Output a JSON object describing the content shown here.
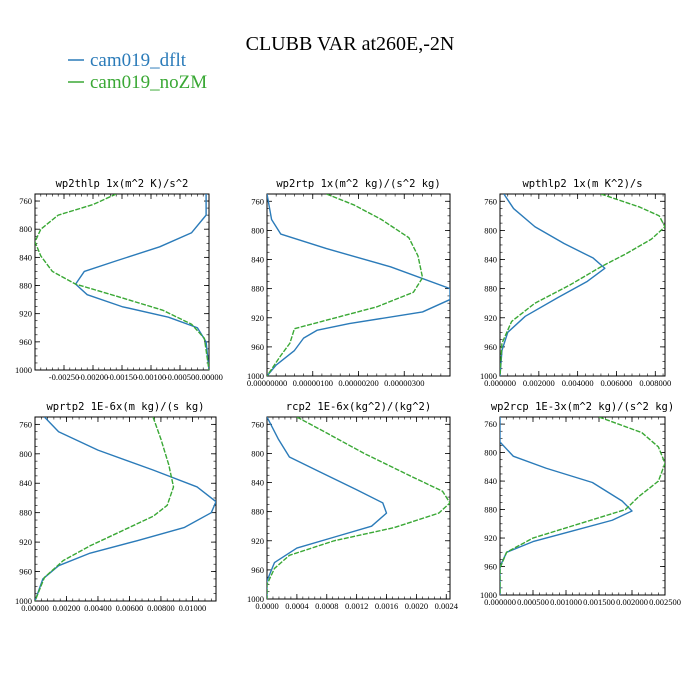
{
  "title": "CLUBB VAR at260E,-2N",
  "colors": {
    "dflt": "#2b7bb9",
    "noZM": "#3aa835"
  },
  "legend": [
    {
      "label": "cam019_dflt",
      "color": "#2b7bb9"
    },
    {
      "label": "cam019_noZM",
      "color": "#3aa835"
    }
  ],
  "chart_data": [
    {
      "type": "line",
      "title": "wp2thlp  1x(m^2 K)/s^2",
      "xlim": [
        -0.003,
        0.0
      ],
      "xticks": [
        -0.0025,
        -0.002,
        -0.0015,
        -0.001,
        -0.0005,
        0.0
      ],
      "xtick_labels": [
        "-0.00250",
        "-0.00200",
        "-0.00150",
        "-0.00100",
        "-0.00050",
        "0.00000"
      ],
      "ylim": [
        1000,
        750
      ],
      "yticks": [
        760,
        800,
        840,
        880,
        920,
        960,
        1000
      ],
      "series": [
        {
          "name": "cam019_dflt",
          "points": [
            [
              -5e-05,
              750
            ],
            [
              -5e-05,
              780
            ],
            [
              -0.0003,
              805
            ],
            [
              -0.00085,
              825
            ],
            [
              -0.0016,
              845
            ],
            [
              -0.00215,
              860
            ],
            [
              -0.0023,
              878
            ],
            [
              -0.0021,
              893
            ],
            [
              -0.0015,
              910
            ],
            [
              -0.0007,
              925
            ],
            [
              -0.0002,
              940
            ],
            [
              -5e-05,
              960
            ],
            [
              0.0,
              1000
            ]
          ]
        },
        {
          "name": "cam019_noZM",
          "points": [
            [
              -0.0016,
              750
            ],
            [
              -0.002,
              765
            ],
            [
              -0.0026,
              780
            ],
            [
              -0.0029,
              800
            ],
            [
              -0.003,
              818
            ],
            [
              -0.0029,
              838
            ],
            [
              -0.0027,
              860
            ],
            [
              -0.0023,
              878
            ],
            [
              -0.0016,
              895
            ],
            [
              -0.0008,
              915
            ],
            [
              -0.0003,
              935
            ],
            [
              -8e-05,
              955
            ],
            [
              0.0,
              1000
            ]
          ]
        }
      ]
    },
    {
      "type": "line",
      "title": "wp2rtp  1x(m^2 kg)/(s^2 kg)",
      "xlim": [
        0.0,
        4e-06
      ],
      "xticks": [
        0.0,
        1e-06,
        2e-06,
        3e-06
      ],
      "xtick_labels": [
        "0.00000000",
        "0.00000100",
        "0.00000200",
        "0.00000300"
      ],
      "ylim": [
        1000,
        750
      ],
      "yticks": [
        760,
        800,
        840,
        880,
        920,
        960,
        1000
      ],
      "series": [
        {
          "name": "cam019_dflt",
          "points": [
            [
              0.0,
              750
            ],
            [
              1e-07,
              785
            ],
            [
              3e-07,
              805
            ],
            [
              1.3e-06,
              825
            ],
            [
              2.7e-06,
              850
            ],
            [
              4e-06,
              880
            ],
            [
              4e-06,
              895
            ],
            [
              3.4e-06,
              912
            ],
            [
              1.8e-06,
              928
            ],
            [
              1.1e-06,
              937
            ],
            [
              8e-07,
              948
            ],
            [
              6e-07,
              965
            ],
            [
              2e-07,
              985
            ],
            [
              0.0,
              1000
            ]
          ]
        },
        {
          "name": "cam019_noZM",
          "points": [
            [
              1.3e-06,
              750
            ],
            [
              1.9e-06,
              765
            ],
            [
              2.5e-06,
              785
            ],
            [
              3.1e-06,
              810
            ],
            [
              3.3e-06,
              835
            ],
            [
              3.4e-06,
              865
            ],
            [
              3.2e-06,
              885
            ],
            [
              2.4e-06,
              905
            ],
            [
              1.2e-06,
              925
            ],
            [
              6e-07,
              935
            ],
            [
              5e-07,
              955
            ],
            [
              3e-07,
              972
            ],
            [
              0.0,
              1000
            ]
          ]
        }
      ]
    },
    {
      "type": "line",
      "title": "wpthlp2  1x(m K^2)/s",
      "xlim": [
        0.0,
        0.0085
      ],
      "xticks": [
        0.0,
        0.002,
        0.004,
        0.006,
        0.008
      ],
      "xtick_labels": [
        "0.000000",
        "0.002000",
        "0.004000",
        "0.006000",
        "0.008000"
      ],
      "ylim": [
        1000,
        750
      ],
      "yticks": [
        760,
        800,
        840,
        880,
        920,
        960,
        1000
      ],
      "series": [
        {
          "name": "cam019_dflt",
          "points": [
            [
              0.0002,
              750
            ],
            [
              0.0007,
              770
            ],
            [
              0.0018,
              795
            ],
            [
              0.0033,
              818
            ],
            [
              0.0048,
              838
            ],
            [
              0.0054,
              852
            ],
            [
              0.0045,
              870
            ],
            [
              0.003,
              892
            ],
            [
              0.0013,
              918
            ],
            [
              0.0004,
              940
            ],
            [
              0.0001,
              965
            ],
            [
              0.0,
              1000
            ]
          ]
        },
        {
          "name": "cam019_noZM",
          "points": [
            [
              0.0052,
              750
            ],
            [
              0.0072,
              768
            ],
            [
              0.0082,
              780
            ],
            [
              0.0085,
              795
            ],
            [
              0.0078,
              812
            ],
            [
              0.0065,
              832
            ],
            [
              0.0052,
              850
            ],
            [
              0.0036,
              875
            ],
            [
              0.0018,
              900
            ],
            [
              0.0006,
              925
            ],
            [
              0.0001,
              955
            ],
            [
              0.0,
              1000
            ]
          ]
        }
      ]
    },
    {
      "type": "line",
      "title": "wprtp2  1E-6x(m kg)/(s kg)",
      "xlim": [
        0.0,
        0.0115
      ],
      "xticks": [
        0.0,
        0.002,
        0.004,
        0.006,
        0.008,
        0.01
      ],
      "xtick_labels": [
        "0.00000",
        "0.00200",
        "0.00400",
        "0.00600",
        "0.00800",
        "0.01000"
      ],
      "ylim": [
        1000,
        750
      ],
      "yticks": [
        760,
        800,
        840,
        880,
        920,
        960,
        1000
      ],
      "series": [
        {
          "name": "cam019_dflt",
          "points": [
            [
              0.0006,
              750
            ],
            [
              0.0015,
              770
            ],
            [
              0.004,
              795
            ],
            [
              0.0075,
              822
            ],
            [
              0.0103,
              845
            ],
            [
              0.0115,
              865
            ],
            [
              0.0112,
              880
            ],
            [
              0.0095,
              900
            ],
            [
              0.0065,
              918
            ],
            [
              0.0035,
              935
            ],
            [
              0.0015,
              952
            ],
            [
              0.0005,
              970
            ],
            [
              0.0,
              1000
            ]
          ]
        },
        {
          "name": "cam019_noZM",
          "points": [
            [
              0.0075,
              750
            ],
            [
              0.008,
              780
            ],
            [
              0.0085,
              815
            ],
            [
              0.0088,
              845
            ],
            [
              0.0084,
              870
            ],
            [
              0.0075,
              885
            ],
            [
              0.0055,
              905
            ],
            [
              0.0035,
              925
            ],
            [
              0.0018,
              945
            ],
            [
              0.0006,
              968
            ],
            [
              0.0,
              1000
            ]
          ]
        }
      ]
    },
    {
      "type": "line",
      "title": "rcp2  1E-6x(kg^2)/(kg^2)",
      "xlim": [
        0.0,
        0.00245
      ],
      "xticks": [
        0.0,
        0.0004,
        0.0008,
        0.0012,
        0.0016,
        0.002,
        0.0024
      ],
      "xtick_labels": [
        "0.0000",
        "0.0004",
        "0.0008",
        "0.0012",
        "0.0016",
        "0.0020",
        "0.0024"
      ],
      "ylim": [
        1000,
        750
      ],
      "yticks": [
        760,
        800,
        840,
        880,
        920,
        960,
        1000
      ],
      "series": [
        {
          "name": "cam019_dflt",
          "points": [
            [
              0.0,
              750
            ],
            [
              0.00015,
              780
            ],
            [
              0.0003,
              805
            ],
            [
              0.0007,
              825
            ],
            [
              0.0012,
              850
            ],
            [
              0.00155,
              868
            ],
            [
              0.0016,
              882
            ],
            [
              0.0014,
              900
            ],
            [
              0.0009,
              915
            ],
            [
              0.0004,
              930
            ],
            [
              0.0001,
              950
            ],
            [
              0.0,
              975
            ],
            [
              0.0,
              1000
            ]
          ]
        },
        {
          "name": "cam019_noZM",
          "points": [
            [
              0.0004,
              750
            ],
            [
              0.0008,
              772
            ],
            [
              0.0013,
              800
            ],
            [
              0.0019,
              830
            ],
            [
              0.00235,
              852
            ],
            [
              0.00245,
              868
            ],
            [
              0.0023,
              882
            ],
            [
              0.0017,
              902
            ],
            [
              0.0009,
              920
            ],
            [
              0.0003,
              940
            ],
            [
              0.0001,
              958
            ],
            [
              0.0,
              980
            ],
            [
              0.0,
              1000
            ]
          ]
        }
      ]
    },
    {
      "type": "line",
      "title": "wp2rcp  1E-3x(m^2 kg)/(s^2 kg)",
      "xlim": [
        0.0,
        0.0025
      ],
      "xticks": [
        0.0,
        0.0005,
        0.001,
        0.0015,
        0.002,
        0.0025
      ],
      "xtick_labels": [
        "0.000000",
        "0.000500",
        "0.001000",
        "0.001500",
        "0.002000",
        "0.002500"
      ],
      "ylim": [
        1000,
        750
      ],
      "yticks": [
        760,
        800,
        840,
        880,
        920,
        960,
        1000
      ],
      "series": [
        {
          "name": "cam019_dflt",
          "points": [
            [
              0.0,
              750
            ],
            [
              0.0,
              785
            ],
            [
              0.0002,
              805
            ],
            [
              0.0007,
              822
            ],
            [
              0.0014,
              842
            ],
            [
              0.00185,
              868
            ],
            [
              0.002,
              882
            ],
            [
              0.0017,
              895
            ],
            [
              0.0011,
              910
            ],
            [
              0.0005,
              925
            ],
            [
              0.0001,
              940
            ],
            [
              0.0,
              960
            ],
            [
              0.0,
              1000
            ]
          ]
        },
        {
          "name": "cam019_noZM",
          "points": [
            [
              0.0015,
              750
            ],
            [
              0.00215,
              772
            ],
            [
              0.0024,
              792
            ],
            [
              0.0025,
              815
            ],
            [
              0.0024,
              840
            ],
            [
              0.0021,
              862
            ],
            [
              0.0019,
              880
            ],
            [
              0.0012,
              900
            ],
            [
              0.0005,
              920
            ],
            [
              0.0001,
              940
            ],
            [
              0.0,
              962
            ],
            [
              0.0,
              1000
            ]
          ]
        }
      ]
    }
  ]
}
